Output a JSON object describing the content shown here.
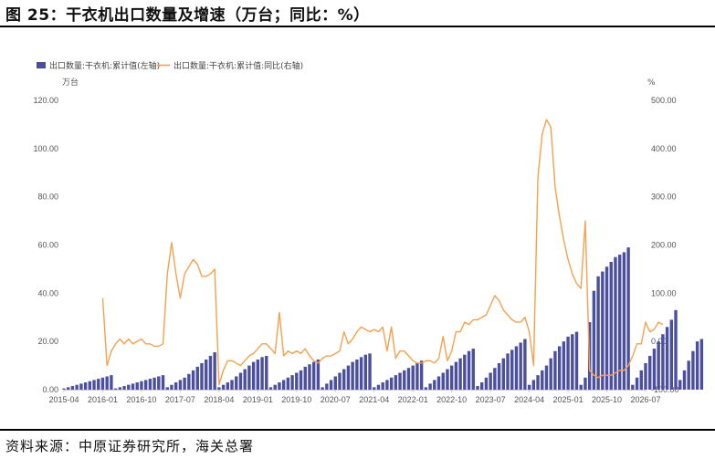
{
  "header": {
    "title": "图 25：干衣机出口数量及增速（万台；同比：%）"
  },
  "footer": {
    "source": "资料来源：中原证券研究所，海关总署"
  },
  "chart_data": {
    "type": "bar+line",
    "left_axis": {
      "unit": "万台",
      "ylim": [
        0,
        120
      ],
      "ticks": [
        "0.00",
        "20.00",
        "40.00",
        "60.00",
        "80.00",
        "100.00",
        "120.00"
      ]
    },
    "right_axis": {
      "unit": "%",
      "ylim": [
        -100,
        500
      ],
      "ticks": [
        "-100.00",
        "0.00",
        "100.00",
        "200.00",
        "300.00",
        "400.00",
        "500.00"
      ]
    },
    "x_tick_labels": [
      "2015-04",
      "2016-01",
      "2016-10",
      "2017-07",
      "2018-04",
      "2019-01",
      "2019-10",
      "2020-07",
      "2021-04",
      "2022-01",
      "2022-10",
      "2023-07",
      "2024-04",
      "2025-01",
      "2025-10",
      "2026-07"
    ],
    "legend_position": "top-left",
    "colors": {
      "bar": "#4b4f9e",
      "line": "#f5a14e",
      "axis": "#cccccc"
    },
    "series": [
      {
        "name": "出口数量:干衣机:累计值(左轴)",
        "kind": "bar",
        "axis": "left",
        "start": "2015-04",
        "values": [
          0.5,
          1,
          1.5,
          2,
          2.5,
          3,
          3.5,
          4,
          4.5,
          5,
          5.5,
          6,
          0.5,
          1,
          1.5,
          2,
          2.5,
          3,
          3.5,
          4,
          4.5,
          5,
          5.5,
          6,
          1,
          2,
          3,
          4,
          5,
          6.5,
          8,
          9.5,
          11,
          12.5,
          14,
          15.5,
          1,
          2,
          3,
          4,
          5.5,
          7,
          8.5,
          10,
          11.5,
          12.5,
          13.5,
          14,
          1,
          2,
          3,
          4,
          5,
          6,
          7,
          8,
          9.5,
          10.5,
          11.5,
          12.5,
          1,
          2.5,
          4,
          5.5,
          7,
          8.5,
          10,
          11.5,
          12.5,
          13.5,
          14.5,
          15,
          1,
          2,
          3,
          4,
          5,
          6,
          7,
          8,
          9,
          10,
          11,
          12,
          1,
          2.5,
          4,
          5.5,
          7,
          8.5,
          10,
          11.5,
          13,
          14.5,
          16,
          17,
          1.5,
          3,
          5,
          7,
          9,
          11,
          13,
          15,
          16.5,
          18,
          19.5,
          21,
          2,
          4,
          6,
          8,
          10,
          13,
          16,
          18,
          20,
          22,
          23,
          24,
          2,
          5,
          28,
          41,
          47,
          49,
          51,
          53,
          55,
          56,
          57,
          59,
          2,
          5,
          8,
          11,
          14,
          17,
          20,
          23,
          26,
          29,
          33,
          4,
          8,
          12,
          16,
          20,
          21
        ]
      },
      {
        "name": "出口数量:干衣机:累计值:同比(右轴)",
        "kind": "line",
        "axis": "right",
        "start": "2016-01",
        "values": [
          90,
          -50,
          -20,
          -5,
          5,
          -5,
          5,
          -5,
          0,
          5,
          -5,
          -5,
          -10,
          -10,
          -5,
          140,
          205,
          140,
          90,
          140,
          155,
          170,
          160,
          135,
          135,
          140,
          150,
          -90,
          -60,
          -40,
          -40,
          -45,
          -50,
          -40,
          -30,
          -25,
          -15,
          -5,
          -5,
          -15,
          -25,
          60,
          -30,
          -20,
          -25,
          -20,
          -25,
          -15,
          -30,
          -40,
          -45,
          -35,
          -30,
          -30,
          -25,
          -20,
          20,
          -5,
          5,
          20,
          30,
          25,
          20,
          25,
          20,
          30,
          -20,
          30,
          -35,
          -20,
          -20,
          -30,
          -40,
          -45,
          -45,
          -40,
          -40,
          -45,
          -35,
          10,
          -40,
          -20,
          20,
          20,
          40,
          35,
          45,
          45,
          50,
          55,
          75,
          95,
          85,
          65,
          55,
          45,
          40,
          40,
          50,
          20,
          -50,
          340,
          430,
          460,
          445,
          320,
          260,
          210,
          170,
          140,
          120,
          110,
          250,
          -60,
          -70,
          -75,
          -70,
          -70,
          -70,
          -65,
          -60,
          -60,
          -50,
          -30,
          -5,
          -5,
          40,
          20,
          25,
          40,
          35
        ]
      }
    ]
  }
}
